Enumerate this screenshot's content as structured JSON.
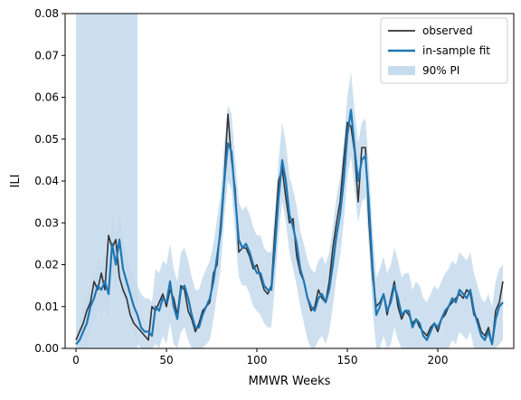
{
  "chart_data": {
    "type": "line",
    "title": "",
    "xlabel": "MMWR Weeks",
    "ylabel": "ILI",
    "xlim": [
      -6,
      242
    ],
    "ylim": [
      0,
      0.08
    ],
    "x_ticks": [
      0,
      50,
      100,
      150,
      200
    ],
    "y_ticks": [
      0.0,
      0.01,
      0.02,
      0.03,
      0.04,
      0.05,
      0.06,
      0.07,
      0.08
    ],
    "x_tick_labels": [
      "0",
      "50",
      "100",
      "150",
      "200"
    ],
    "y_tick_labels": [
      "0.00",
      "0.01",
      "0.02",
      "0.03",
      "0.04",
      "0.05",
      "0.06",
      "0.07",
      "0.08"
    ],
    "grid": false,
    "legend_position": "top-right",
    "shaded_region": {
      "x_start": 0,
      "x_end": 34,
      "color": "#c6dbec"
    },
    "series": [
      {
        "name": "observed",
        "color": "#333333",
        "x": [
          0,
          2,
          4,
          6,
          8,
          10,
          12,
          14,
          16,
          18,
          20,
          22,
          24,
          26,
          28,
          30,
          32,
          34,
          36,
          38,
          40,
          42,
          44,
          46,
          48,
          50,
          52,
          54,
          56,
          58,
          60,
          62,
          64,
          66,
          68,
          70,
          72,
          74,
          76,
          78,
          80,
          82,
          84,
          86,
          88,
          90,
          92,
          94,
          96,
          98,
          100,
          102,
          104,
          106,
          108,
          110,
          112,
          114,
          116,
          118,
          120,
          122,
          124,
          126,
          128,
          130,
          132,
          134,
          136,
          138,
          140,
          142,
          144,
          146,
          148,
          150,
          152,
          154,
          156,
          158,
          160,
          162,
          164,
          166,
          168,
          170,
          172,
          174,
          176,
          178,
          180,
          182,
          184,
          186,
          188,
          190,
          192,
          194,
          196,
          198,
          200,
          202,
          204,
          206,
          208,
          210,
          212,
          214,
          216,
          218,
          220,
          222,
          224,
          226,
          228,
          230,
          232,
          234,
          236
        ],
        "values": [
          0.002,
          0.004,
          0.006,
          0.009,
          0.011,
          0.016,
          0.014,
          0.018,
          0.014,
          0.027,
          0.024,
          0.026,
          0.017,
          0.014,
          0.012,
          0.008,
          0.006,
          0.005,
          0.004,
          0.003,
          0.002,
          0.01,
          0.009,
          0.011,
          0.013,
          0.01,
          0.014,
          0.012,
          0.008,
          0.015,
          0.014,
          0.009,
          0.007,
          0.004,
          0.006,
          0.009,
          0.01,
          0.011,
          0.018,
          0.02,
          0.03,
          0.041,
          0.056,
          0.045,
          0.038,
          0.023,
          0.024,
          0.024,
          0.022,
          0.019,
          0.02,
          0.017,
          0.014,
          0.013,
          0.015,
          0.028,
          0.04,
          0.043,
          0.036,
          0.03,
          0.031,
          0.022,
          0.018,
          0.016,
          0.012,
          0.009,
          0.01,
          0.014,
          0.012,
          0.011,
          0.016,
          0.024,
          0.03,
          0.035,
          0.045,
          0.054,
          0.053,
          0.047,
          0.035,
          0.048,
          0.048,
          0.03,
          0.017,
          0.01,
          0.011,
          0.013,
          0.008,
          0.012,
          0.016,
          0.01,
          0.007,
          0.009,
          0.008,
          0.006,
          0.007,
          0.005,
          0.004,
          0.003,
          0.005,
          0.006,
          0.004,
          0.007,
          0.008,
          0.01,
          0.011,
          0.012,
          0.013,
          0.012,
          0.014,
          0.013,
          0.008,
          0.007,
          0.004,
          0.003,
          0.005,
          0.001,
          0.009,
          0.011,
          0.016
        ]
      },
      {
        "name": "in-sample fit",
        "color": "#1f77b4",
        "x": [
          0,
          2,
          4,
          6,
          8,
          10,
          12,
          14,
          16,
          18,
          20,
          22,
          24,
          26,
          28,
          30,
          32,
          34,
          36,
          38,
          40,
          42,
          44,
          46,
          48,
          50,
          52,
          54,
          56,
          58,
          60,
          62,
          64,
          66,
          68,
          70,
          72,
          74,
          76,
          78,
          80,
          82,
          84,
          86,
          88,
          90,
          92,
          94,
          96,
          98,
          100,
          102,
          104,
          106,
          108,
          110,
          112,
          114,
          116,
          118,
          120,
          122,
          124,
          126,
          128,
          130,
          132,
          134,
          136,
          138,
          140,
          142,
          144,
          146,
          148,
          150,
          152,
          154,
          156,
          158,
          160,
          162,
          164,
          166,
          168,
          170,
          172,
          174,
          176,
          178,
          180,
          182,
          184,
          186,
          188,
          190,
          192,
          194,
          196,
          198,
          200,
          202,
          204,
          206,
          208,
          210,
          212,
          214,
          216,
          218,
          220,
          222,
          224,
          226,
          228,
          230,
          232,
          234,
          236
        ],
        "values": [
          0.001,
          0.002,
          0.004,
          0.006,
          0.01,
          0.012,
          0.015,
          0.014,
          0.016,
          0.013,
          0.025,
          0.02,
          0.026,
          0.019,
          0.016,
          0.013,
          0.01,
          0.008,
          0.005,
          0.004,
          0.004,
          0.003,
          0.01,
          0.009,
          0.012,
          0.011,
          0.016,
          0.01,
          0.007,
          0.014,
          0.015,
          0.012,
          0.008,
          0.005,
          0.005,
          0.008,
          0.01,
          0.012,
          0.016,
          0.022,
          0.028,
          0.04,
          0.049,
          0.047,
          0.036,
          0.026,
          0.024,
          0.025,
          0.023,
          0.02,
          0.018,
          0.018,
          0.015,
          0.014,
          0.014,
          0.024,
          0.036,
          0.045,
          0.04,
          0.032,
          0.029,
          0.025,
          0.019,
          0.016,
          0.012,
          0.01,
          0.009,
          0.012,
          0.013,
          0.011,
          0.014,
          0.02,
          0.027,
          0.032,
          0.04,
          0.051,
          0.057,
          0.048,
          0.04,
          0.045,
          0.046,
          0.034,
          0.019,
          0.008,
          0.01,
          0.013,
          0.009,
          0.011,
          0.015,
          0.012,
          0.008,
          0.009,
          0.009,
          0.005,
          0.007,
          0.006,
          0.003,
          0.002,
          0.004,
          0.006,
          0.005,
          0.007,
          0.009,
          0.01,
          0.012,
          0.011,
          0.014,
          0.013,
          0.012,
          0.014,
          0.009,
          0.006,
          0.003,
          0.002,
          0.004,
          0.001,
          0.007,
          0.01,
          0.011
        ]
      },
      {
        "name": "90% PI",
        "type": "band",
        "color": "#c6dbec",
        "x": [
          0,
          2,
          4,
          6,
          8,
          10,
          12,
          14,
          16,
          18,
          20,
          22,
          24,
          26,
          28,
          30,
          32,
          34,
          36,
          38,
          40,
          42,
          44,
          46,
          48,
          50,
          52,
          54,
          56,
          58,
          60,
          62,
          64,
          66,
          68,
          70,
          72,
          74,
          76,
          78,
          80,
          82,
          84,
          86,
          88,
          90,
          92,
          94,
          96,
          98,
          100,
          102,
          104,
          106,
          108,
          110,
          112,
          114,
          116,
          118,
          120,
          122,
          124,
          126,
          128,
          130,
          132,
          134,
          136,
          138,
          140,
          142,
          144,
          146,
          148,
          150,
          152,
          154,
          156,
          158,
          160,
          162,
          164,
          166,
          168,
          170,
          172,
          174,
          176,
          178,
          180,
          182,
          184,
          186,
          188,
          190,
          192,
          194,
          196,
          198,
          200,
          202,
          204,
          206,
          208,
          210,
          212,
          214,
          216,
          218,
          220,
          222,
          224,
          226,
          228,
          230,
          232,
          234,
          236
        ],
        "lower": [
          0.0,
          0.0,
          0.0,
          0.001,
          0.004,
          0.006,
          0.009,
          0.008,
          0.01,
          0.007,
          0.018,
          0.014,
          0.019,
          0.012,
          0.009,
          0.006,
          0.003,
          0.001,
          0.0,
          0.0,
          0.0,
          0.0,
          0.001,
          0.0,
          0.003,
          0.001,
          0.006,
          0.001,
          0.0,
          0.004,
          0.005,
          0.002,
          0.0,
          0.0,
          0.0,
          0.0,
          0.001,
          0.002,
          0.007,
          0.013,
          0.019,
          0.031,
          0.04,
          0.038,
          0.027,
          0.017,
          0.015,
          0.015,
          0.013,
          0.01,
          0.009,
          0.008,
          0.006,
          0.005,
          0.005,
          0.015,
          0.027,
          0.035,
          0.03,
          0.023,
          0.019,
          0.015,
          0.01,
          0.006,
          0.002,
          0.0,
          0.0,
          0.002,
          0.003,
          0.001,
          0.004,
          0.01,
          0.017,
          0.022,
          0.03,
          0.041,
          0.046,
          0.038,
          0.03,
          0.035,
          0.036,
          0.024,
          0.009,
          0.0,
          0.0,
          0.003,
          0.0,
          0.001,
          0.005,
          0.002,
          0.0,
          0.0,
          0.0,
          0.0,
          0.0,
          0.0,
          0.0,
          0.0,
          0.0,
          0.0,
          0.0,
          0.0,
          0.0,
          0.0,
          0.002,
          0.001,
          0.004,
          0.003,
          0.002,
          0.004,
          0.0,
          0.0,
          0.0,
          0.0,
          0.0,
          0.0,
          0.0,
          0.001,
          0.002
        ],
        "upper": [
          0.004,
          0.006,
          0.009,
          0.012,
          0.016,
          0.018,
          0.021,
          0.02,
          0.023,
          0.02,
          0.032,
          0.027,
          0.033,
          0.026,
          0.023,
          0.02,
          0.017,
          0.015,
          0.013,
          0.012,
          0.012,
          0.011,
          0.019,
          0.018,
          0.021,
          0.02,
          0.025,
          0.019,
          0.016,
          0.023,
          0.024,
          0.021,
          0.017,
          0.014,
          0.014,
          0.017,
          0.019,
          0.021,
          0.025,
          0.031,
          0.037,
          0.049,
          0.058,
          0.056,
          0.045,
          0.035,
          0.033,
          0.034,
          0.032,
          0.029,
          0.027,
          0.027,
          0.024,
          0.023,
          0.023,
          0.033,
          0.045,
          0.054,
          0.049,
          0.041,
          0.038,
          0.034,
          0.028,
          0.025,
          0.021,
          0.019,
          0.018,
          0.021,
          0.022,
          0.02,
          0.023,
          0.029,
          0.036,
          0.041,
          0.049,
          0.06,
          0.066,
          0.057,
          0.049,
          0.054,
          0.055,
          0.043,
          0.028,
          0.017,
          0.019,
          0.022,
          0.018,
          0.02,
          0.024,
          0.021,
          0.017,
          0.018,
          0.018,
          0.014,
          0.016,
          0.015,
          0.012,
          0.011,
          0.013,
          0.015,
          0.014,
          0.016,
          0.018,
          0.019,
          0.021,
          0.02,
          0.023,
          0.022,
          0.021,
          0.023,
          0.018,
          0.015,
          0.012,
          0.011,
          0.013,
          0.01,
          0.016,
          0.019,
          0.02
        ]
      }
    ]
  }
}
